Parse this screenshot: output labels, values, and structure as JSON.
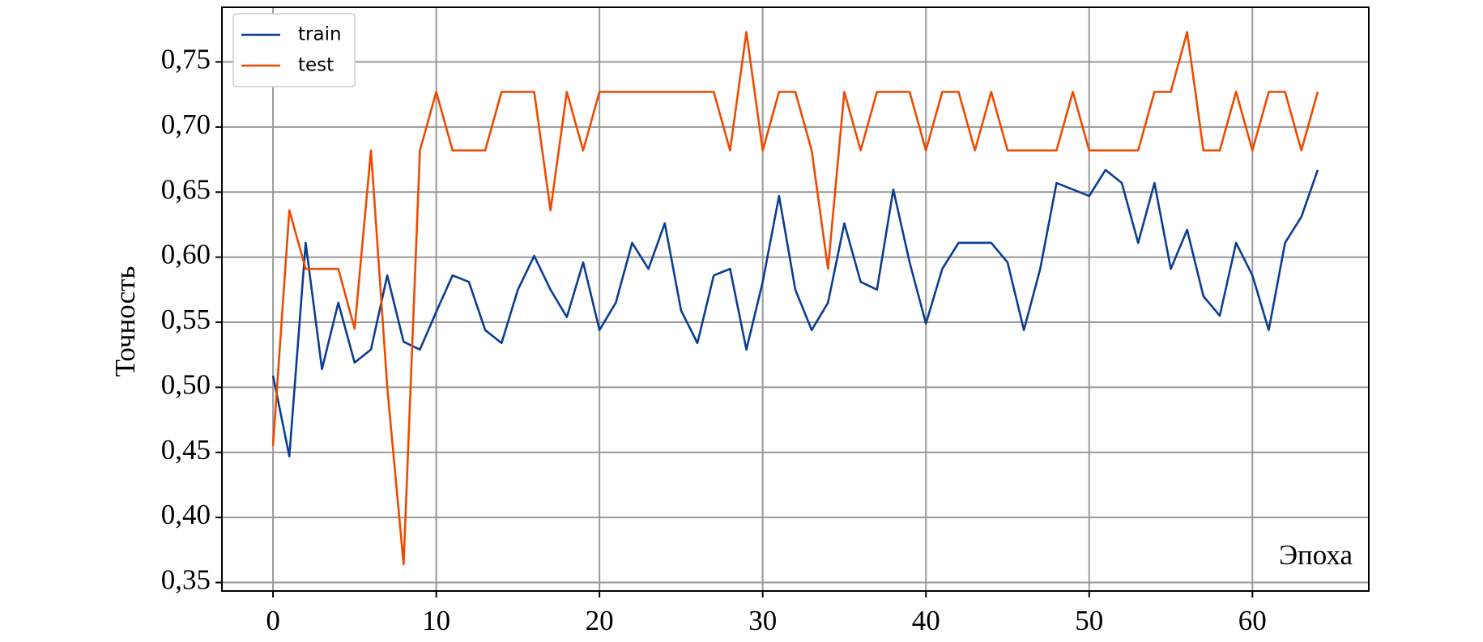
{
  "chart_data": {
    "type": "line",
    "y_label": "Точность",
    "x_label": "Эпоха",
    "x": [
      0,
      1,
      2,
      3,
      4,
      5,
      6,
      7,
      8,
      9,
      10,
      11,
      12,
      13,
      14,
      15,
      16,
      17,
      18,
      19,
      20,
      21,
      22,
      23,
      24,
      25,
      26,
      27,
      28,
      29,
      30,
      31,
      32,
      33,
      34,
      35,
      36,
      37,
      38,
      39,
      40,
      41,
      42,
      43,
      44,
      45,
      46,
      47,
      48,
      49,
      50,
      51,
      52,
      53,
      54,
      55,
      56,
      57,
      58,
      59,
      60,
      61,
      62,
      63,
      64
    ],
    "series": [
      {
        "name": "train",
        "color": "#0b3d91",
        "values": [
          0.509,
          0.447,
          0.611,
          0.514,
          0.565,
          0.519,
          0.529,
          0.586,
          0.535,
          0.529,
          0.558,
          0.586,
          0.581,
          0.544,
          0.534,
          0.575,
          0.601,
          0.575,
          0.554,
          0.596,
          0.544,
          0.565,
          0.611,
          0.591,
          0.626,
          0.559,
          0.534,
          0.586,
          0.591,
          0.529,
          0.581,
          0.647,
          0.575,
          0.544,
          0.565,
          0.626,
          0.581,
          0.575,
          0.652,
          0.596,
          0.549,
          0.591,
          0.611,
          0.611,
          0.611,
          0.596,
          0.544,
          0.591,
          0.657,
          0.652,
          0.647,
          0.667,
          0.657,
          0.611,
          0.657,
          0.591,
          0.621,
          0.57,
          0.555,
          0.611,
          0.586,
          0.544,
          0.611,
          0.631,
          0.667
        ]
      },
      {
        "name": "test",
        "color": "#f04a00",
        "values": [
          0.455,
          0.636,
          0.591,
          0.591,
          0.591,
          0.545,
          0.682,
          0.5,
          0.364,
          0.682,
          0.727,
          0.682,
          0.682,
          0.682,
          0.727,
          0.727,
          0.727,
          0.636,
          0.727,
          0.682,
          0.727,
          0.727,
          0.727,
          0.727,
          0.727,
          0.727,
          0.727,
          0.727,
          0.682,
          0.773,
          0.682,
          0.727,
          0.727,
          0.682,
          0.591,
          0.727,
          0.682,
          0.727,
          0.727,
          0.727,
          0.682,
          0.727,
          0.727,
          0.682,
          0.727,
          0.682,
          0.682,
          0.682,
          0.682,
          0.727,
          0.682,
          0.682,
          0.682,
          0.682,
          0.727,
          0.727,
          0.773,
          0.682,
          0.682,
          0.727,
          0.682,
          0.727,
          0.727,
          0.682,
          0.727
        ]
      }
    ],
    "xlim": [
      -3.13,
      67.13
    ],
    "xticks": [
      0,
      10,
      20,
      30,
      40,
      50,
      60
    ],
    "ylim": [
      0.3435,
      0.792
    ],
    "yticks": [
      {
        "value": 0.35,
        "label": "0,35"
      },
      {
        "value": 0.4,
        "label": "0,40"
      },
      {
        "value": 0.45,
        "label": "0,45"
      },
      {
        "value": 0.5,
        "label": "0,50"
      },
      {
        "value": 0.55,
        "label": "0,55"
      },
      {
        "value": 0.6,
        "label": "0,60"
      },
      {
        "value": 0.65,
        "label": "0,65"
      },
      {
        "value": 0.7,
        "label": "0,70"
      },
      {
        "value": 0.75,
        "label": "0,75"
      }
    ],
    "grid": true,
    "legend": "upper-left"
  }
}
